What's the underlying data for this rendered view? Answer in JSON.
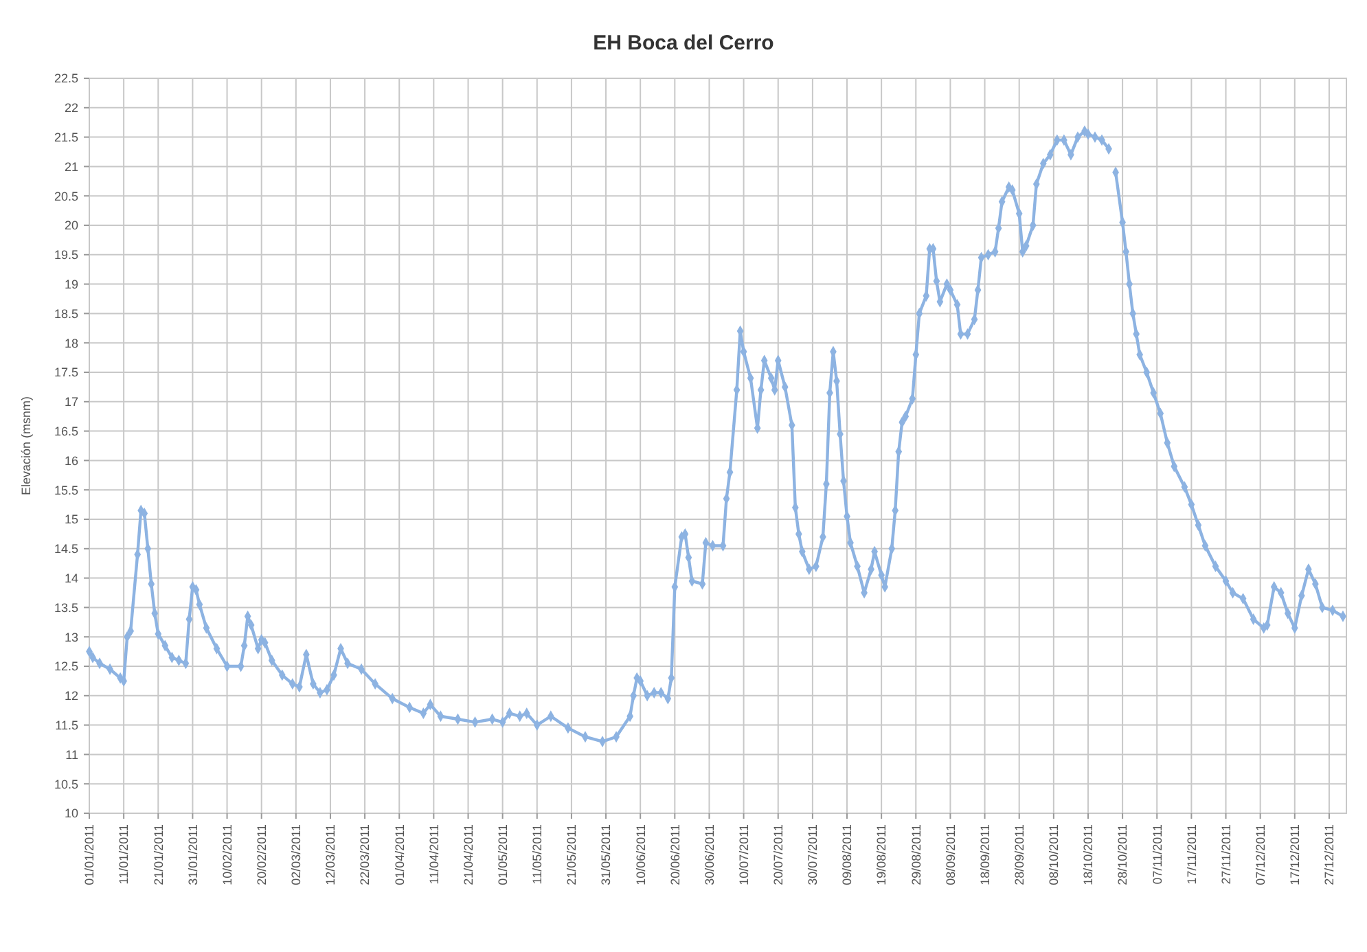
{
  "chart_data": {
    "type": "line",
    "title": "EH Boca del Cerro",
    "ylabel": "Elevación (msnm)",
    "series": [
      {
        "color": "#8db3e2",
        "x": [
          "2011-01-01",
          "2011-01-02",
          "2011-01-04",
          "2011-01-07",
          "2011-01-10",
          "2011-01-11",
          "2011-01-12",
          "2011-01-13",
          "2011-01-15",
          "2011-01-16",
          "2011-01-17",
          "2011-01-18",
          "2011-01-19",
          "2011-01-20",
          "2011-01-21",
          "2011-01-23",
          "2011-01-25",
          "2011-01-27",
          "2011-01-29",
          "2011-01-30",
          "2011-01-31",
          "2011-02-01",
          "2011-02-02",
          "2011-02-04",
          "2011-02-07",
          "2011-02-10",
          "2011-02-14",
          "2011-02-15",
          "2011-02-16",
          "2011-02-17",
          "2011-02-19",
          "2011-02-20",
          "2011-02-21",
          "2011-02-23",
          "2011-02-26",
          "2011-03-01",
          "2011-03-03",
          "2011-03-05",
          "2011-03-07",
          "2011-03-09",
          "2011-03-11",
          "2011-03-13",
          "2011-03-15",
          "2011-03-17",
          "2011-03-21",
          "2011-03-25",
          "2011-03-30",
          "2011-04-04",
          "2011-04-08",
          "2011-04-10",
          "2011-04-13",
          "2011-04-18",
          "2011-04-23",
          "2011-04-28",
          "2011-05-01",
          "2011-05-03",
          "2011-05-06",
          "2011-05-08",
          "2011-05-11",
          "2011-05-15",
          "2011-05-20",
          "2011-05-25",
          "2011-05-30",
          "2011-06-03",
          "2011-06-07",
          "2011-06-08",
          "2011-06-09",
          "2011-06-10",
          "2011-06-12",
          "2011-06-14",
          "2011-06-16",
          "2011-06-18",
          "2011-06-19",
          "2011-06-20",
          "2011-06-22",
          "2011-06-23",
          "2011-06-24",
          "2011-06-25",
          "2011-06-28",
          "2011-06-29",
          "2011-07-01",
          "2011-07-04",
          "2011-07-05",
          "2011-07-06",
          "2011-07-08",
          "2011-07-09",
          "2011-07-10",
          "2011-07-12",
          "2011-07-14",
          "2011-07-15",
          "2011-07-16",
          "2011-07-18",
          "2011-07-19",
          "2011-07-20",
          "2011-07-22",
          "2011-07-24",
          "2011-07-25",
          "2011-07-26",
          "2011-07-27",
          "2011-07-29",
          "2011-07-31",
          "2011-08-02",
          "2011-08-03",
          "2011-08-04",
          "2011-08-05",
          "2011-08-06",
          "2011-08-07",
          "2011-08-08",
          "2011-08-09",
          "2011-08-10",
          "2011-08-12",
          "2011-08-14",
          "2011-08-16",
          "2011-08-17",
          "2011-08-19",
          "2011-08-20",
          "2011-08-22",
          "2011-08-23",
          "2011-08-24",
          "2011-08-25",
          "2011-08-26",
          "2011-08-28",
          "2011-08-29",
          "2011-08-30",
          "2011-09-01",
          "2011-09-02",
          "2011-09-03",
          "2011-09-04",
          "2011-09-05",
          "2011-09-07",
          "2011-09-08",
          "2011-09-10",
          "2011-09-11",
          "2011-09-13",
          "2011-09-15",
          "2011-09-16",
          "2011-09-17",
          "2011-09-19",
          "2011-09-21",
          "2011-09-22",
          "2011-09-23",
          "2011-09-25",
          "2011-09-26",
          "2011-09-28",
          "2011-09-29",
          "2011-09-30",
          "2011-10-02",
          "2011-10-03",
          "2011-10-05",
          "2011-10-07",
          "2011-10-09",
          "2011-10-11",
          "2011-10-13",
          "2011-10-15",
          "2011-10-17",
          "2011-10-18",
          "2011-10-20",
          "2011-10-22",
          "2011-10-24",
          "2011-10-25",
          "2011-10-26",
          "2011-10-28",
          "2011-10-29",
          "2011-10-30",
          "2011-10-31",
          "2011-11-01",
          "2011-11-02",
          "2011-11-04",
          "2011-11-06",
          "2011-11-08",
          "2011-11-10",
          "2011-11-12",
          "2011-11-15",
          "2011-11-17",
          "2011-11-19",
          "2011-11-21",
          "2011-11-24",
          "2011-11-27",
          "2011-11-29",
          "2011-12-02",
          "2011-12-05",
          "2011-12-08",
          "2011-12-09",
          "2011-12-11",
          "2011-12-13",
          "2011-12-15",
          "2011-12-17",
          "2011-12-19",
          "2011-12-21",
          "2011-12-23",
          "2011-12-25",
          "2011-12-28",
          "2011-12-31"
        ],
        "values": [
          12.75,
          12.65,
          12.55,
          12.45,
          12.3,
          12.25,
          13.0,
          13.1,
          14.4,
          15.15,
          15.1,
          14.5,
          13.9,
          13.4,
          13.05,
          12.85,
          12.65,
          12.6,
          12.55,
          13.3,
          13.85,
          13.8,
          13.55,
          13.15,
          12.8,
          12.5,
          12.5,
          12.85,
          13.35,
          13.2,
          12.8,
          12.95,
          12.9,
          12.6,
          12.35,
          12.2,
          12.15,
          12.7,
          12.2,
          12.05,
          12.1,
          12.35,
          12.8,
          12.55,
          12.45,
          12.2,
          11.95,
          11.8,
          11.7,
          11.85,
          11.65,
          11.6,
          11.55,
          11.6,
          11.55,
          11.7,
          11.65,
          11.7,
          11.5,
          11.65,
          11.45,
          11.3,
          11.22,
          11.3,
          11.65,
          12.0,
          12.3,
          12.25,
          12.0,
          12.05,
          12.05,
          11.95,
          12.3,
          13.85,
          14.7,
          14.75,
          14.35,
          13.95,
          13.9,
          14.6,
          14.55,
          14.55,
          15.35,
          15.8,
          17.2,
          18.2,
          17.85,
          17.4,
          16.55,
          17.2,
          17.7,
          17.4,
          17.2,
          17.7,
          17.25,
          16.6,
          15.2,
          14.75,
          14.45,
          14.15,
          14.2,
          14.7,
          15.6,
          17.15,
          17.85,
          17.35,
          16.45,
          15.65,
          15.05,
          14.6,
          14.2,
          13.75,
          14.15,
          14.45,
          14.05,
          13.85,
          14.5,
          15.15,
          16.15,
          16.65,
          16.75,
          17.05,
          17.8,
          18.5,
          18.8,
          19.6,
          19.6,
          19.05,
          18.7,
          19.0,
          18.9,
          18.65,
          18.15,
          18.15,
          18.4,
          18.9,
          19.45,
          19.5,
          19.55,
          19.95,
          20.4,
          20.65,
          20.6,
          20.2,
          19.55,
          19.65,
          20.0,
          20.7,
          21.05,
          21.2,
          21.45,
          21.45,
          21.2,
          21.5,
          21.6,
          21.55,
          21.5,
          21.45,
          21.3,
          null,
          20.9,
          20.05,
          19.55,
          19.0,
          18.5,
          18.15,
          17.8,
          17.5,
          17.15,
          16.8,
          16.3,
          15.9,
          15.55,
          15.25,
          14.9,
          14.55,
          14.2,
          13.95,
          13.75,
          13.65,
          13.3,
          13.15,
          13.2,
          13.85,
          13.75,
          13.4,
          13.15,
          13.7,
          14.15,
          13.9,
          13.5,
          13.45,
          13.35
        ]
      }
    ],
    "xlim": [
      "2011-01-01",
      "2012-01-01"
    ],
    "xticks": [
      {
        "value": "2011-01-01",
        "label": "01/01/2011"
      },
      {
        "value": "2011-01-11",
        "label": "11/01/2011"
      },
      {
        "value": "2011-01-21",
        "label": "21/01/2011"
      },
      {
        "value": "2011-01-31",
        "label": "31/01/2011"
      },
      {
        "value": "2011-02-10",
        "label": "10/02/2011"
      },
      {
        "value": "2011-02-20",
        "label": "20/02/2011"
      },
      {
        "value": "2011-03-02",
        "label": "02/03/2011"
      },
      {
        "value": "2011-03-12",
        "label": "12/03/2011"
      },
      {
        "value": "2011-03-22",
        "label": "22/03/2011"
      },
      {
        "value": "2011-04-01",
        "label": "01/04/2011"
      },
      {
        "value": "2011-04-11",
        "label": "11/04/2011"
      },
      {
        "value": "2011-04-21",
        "label": "21/04/2011"
      },
      {
        "value": "2011-05-01",
        "label": "01/05/2011"
      },
      {
        "value": "2011-05-11",
        "label": "11/05/2011"
      },
      {
        "value": "2011-05-21",
        "label": "21/05/2011"
      },
      {
        "value": "2011-05-31",
        "label": "31/05/2011"
      },
      {
        "value": "2011-06-10",
        "label": "10/06/2011"
      },
      {
        "value": "2011-06-20",
        "label": "20/06/2011"
      },
      {
        "value": "2011-06-30",
        "label": "30/06/2011"
      },
      {
        "value": "2011-07-10",
        "label": "10/07/2011"
      },
      {
        "value": "2011-07-20",
        "label": "20/07/2011"
      },
      {
        "value": "2011-07-30",
        "label": "30/07/2011"
      },
      {
        "value": "2011-08-09",
        "label": "09/08/2011"
      },
      {
        "value": "2011-08-19",
        "label": "19/08/2011"
      },
      {
        "value": "2011-08-29",
        "label": "29/08/2011"
      },
      {
        "value": "2011-09-08",
        "label": "08/09/2011"
      },
      {
        "value": "2011-09-18",
        "label": "18/09/2011"
      },
      {
        "value": "2011-09-28",
        "label": "28/09/2011"
      },
      {
        "value": "2011-10-08",
        "label": "08/10/2011"
      },
      {
        "value": "2011-10-18",
        "label": "18/10/2011"
      },
      {
        "value": "2011-10-28",
        "label": "28/10/2011"
      },
      {
        "value": "2011-11-07",
        "label": "07/11/2011"
      },
      {
        "value": "2011-11-17",
        "label": "17/11/2011"
      },
      {
        "value": "2011-11-27",
        "label": "27/11/2011"
      },
      {
        "value": "2011-12-07",
        "label": "07/12/2011"
      },
      {
        "value": "2011-12-17",
        "label": "17/12/2011"
      },
      {
        "value": "2011-12-27",
        "label": "27/12/2011"
      }
    ],
    "ylim": [
      10,
      22.5
    ],
    "yticks": [
      10,
      10.5,
      11,
      11.5,
      12,
      12.5,
      13,
      13.5,
      14,
      14.5,
      15,
      15.5,
      16,
      16.5,
      17,
      17.5,
      18,
      18.5,
      19,
      19.5,
      20,
      20.5,
      21,
      21.5,
      22,
      22.5
    ],
    "grid": true,
    "marker": "diamond",
    "line_style": "solid"
  }
}
